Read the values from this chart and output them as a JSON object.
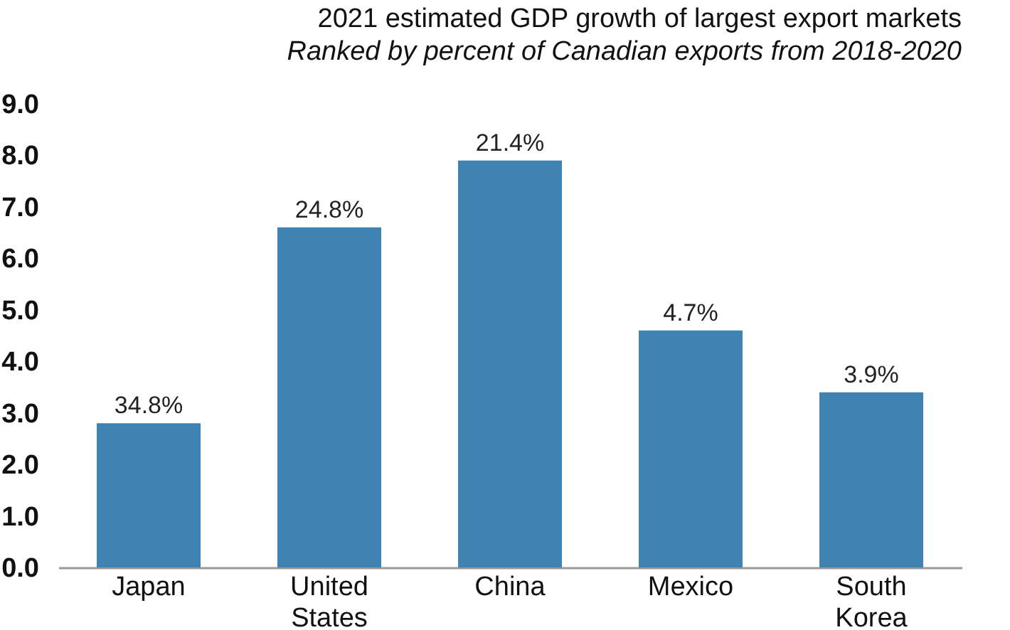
{
  "chart_data": {
    "type": "bar",
    "title": "2021 estimated GDP growth of largest export markets",
    "subtitle": "Ranked by percent of Canadian exports from 2018-2020",
    "categories": [
      "Japan",
      "United States",
      "China",
      "Mexico",
      "South Korea"
    ],
    "values": [
      2.8,
      6.6,
      7.9,
      4.6,
      3.4
    ],
    "annotations": [
      {
        "text": "34.8%",
        "x": "Japan",
        "y": 2.8
      },
      {
        "text": "24.8%",
        "x": "United States",
        "y": 6.6
      },
      {
        "text": "21.4%",
        "x": "China",
        "y": 7.9
      },
      {
        "text": "4.7%",
        "x": "Mexico",
        "y": 4.6
      },
      {
        "text": "3.9%",
        "x": "South Korea",
        "y": 3.4
      }
    ],
    "color": "#3f83b2",
    "ylim": [
      0,
      9
    ],
    "yticks": [
      {
        "value": 0,
        "label": "0.0"
      },
      {
        "value": 1,
        "label": "1.0"
      },
      {
        "value": 2,
        "label": "2.0"
      },
      {
        "value": 3,
        "label": "3.0"
      },
      {
        "value": 4,
        "label": "4.0"
      },
      {
        "value": 5,
        "label": "5.0"
      },
      {
        "value": 6,
        "label": "6.0"
      },
      {
        "value": 7,
        "label": "7.0"
      },
      {
        "value": 8,
        "label": "8.0"
      },
      {
        "value": 9,
        "label": "9.0"
      }
    ],
    "grid": false
  }
}
